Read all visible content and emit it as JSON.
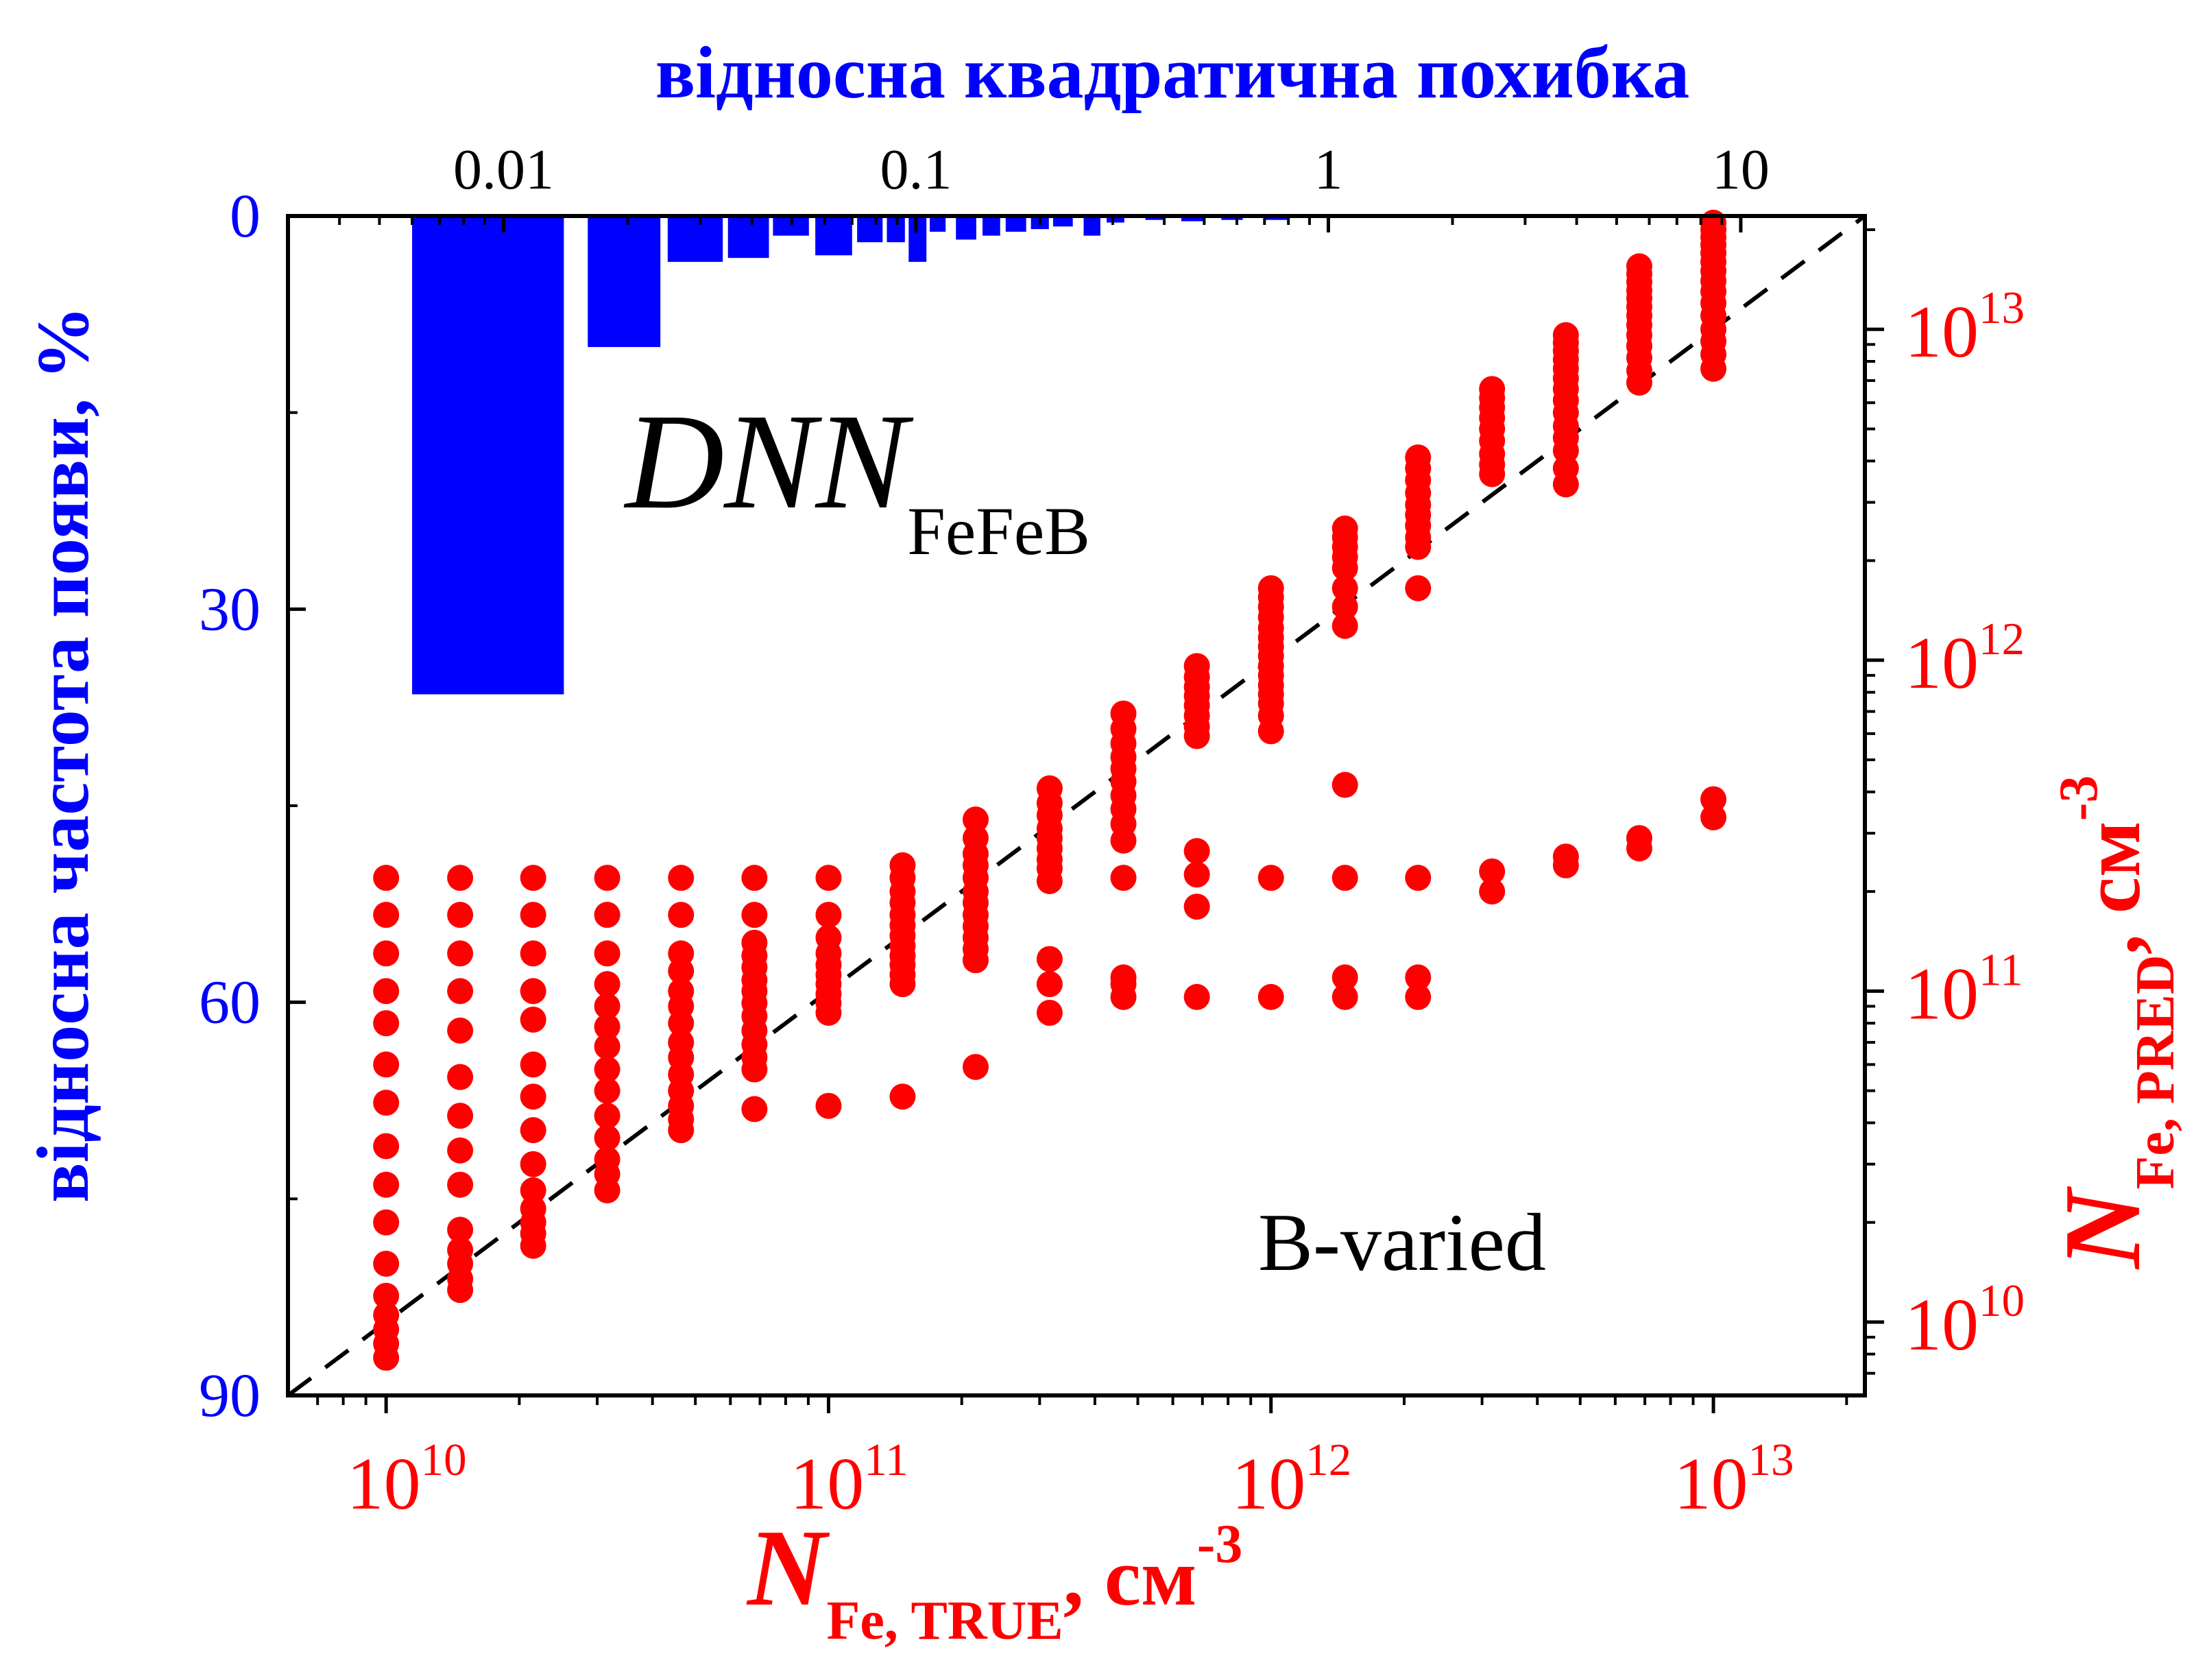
{
  "chart_data": {
    "type": "scatter",
    "colors": {
      "histogram": "#0000ff",
      "scatter": "#ff0000",
      "reference": "#000000",
      "axes": "#000000"
    },
    "top_axis": {
      "label": "відносна квадратична похибка",
      "scale": "log",
      "range": [
        0.003,
        20
      ],
      "ticks": [
        {
          "value": 0.01,
          "label": "0.01"
        },
        {
          "value": 0.1,
          "label": "0.1"
        },
        {
          "value": 1,
          "label": "1"
        },
        {
          "value": 10,
          "label": "10"
        }
      ]
    },
    "left_axis": {
      "label": "відносна частота появи, %",
      "scale": "linear",
      "inverted": true,
      "range": [
        0,
        90
      ],
      "ticks": [
        {
          "value": 0,
          "label": "0"
        },
        {
          "value": 30,
          "label": "30"
        },
        {
          "value": 60,
          "label": "60"
        },
        {
          "value": 90,
          "label": "90"
        }
      ]
    },
    "bottom_axis": {
      "label_main": "N",
      "label_sub": "Fe, TRUE",
      "label_unit": ", см",
      "label_exp": "-3",
      "scale": "log",
      "range": [
        6000000000.0,
        22000000000000.0
      ],
      "ticks": [
        {
          "value": 10000000000.0,
          "base": "10",
          "exp": "10"
        },
        {
          "value": 100000000000.0,
          "base": "10",
          "exp": "11"
        },
        {
          "value": 1000000000000.0,
          "base": "10",
          "exp": "12"
        },
        {
          "value": 10000000000000.0,
          "base": "10",
          "exp": "13"
        }
      ]
    },
    "right_axis": {
      "label_main": "N",
      "label_sub": "Fe, PRED",
      "label_unit": ", см",
      "label_exp": "-3",
      "scale": "log",
      "range": [
        6000000000.0,
        22000000000000.0
      ],
      "ticks": [
        {
          "value": 10000000000.0,
          "base": "10",
          "exp": "10"
        },
        {
          "value": 100000000000.0,
          "base": "10",
          "exp": "11"
        },
        {
          "value": 1000000000000.0,
          "base": "10",
          "exp": "12"
        },
        {
          "value": 10000000000000.0,
          "base": "10",
          "exp": "13"
        }
      ]
    },
    "annotations": {
      "model_main": "DNN",
      "model_sub": "FeFeB",
      "dataset": "B-varied"
    },
    "histogram": [
      {
        "x0": 0.006,
        "x1": 0.014,
        "value": 36.5
      },
      {
        "x0": 0.016,
        "x1": 0.024,
        "value": 10
      },
      {
        "x0": 0.025,
        "x1": 0.034,
        "value": 3.5
      },
      {
        "x0": 0.035,
        "x1": 0.044,
        "value": 3.2
      },
      {
        "x0": 0.045,
        "x1": 0.055,
        "value": 1.5
      },
      {
        "x0": 0.057,
        "x1": 0.07,
        "value": 3
      },
      {
        "x0": 0.072,
        "x1": 0.083,
        "value": 2
      },
      {
        "x0": 0.085,
        "x1": 0.094,
        "value": 2
      },
      {
        "x0": 0.096,
        "x1": 0.106,
        "value": 3.5
      },
      {
        "x0": 0.108,
        "x1": 0.118,
        "value": 1.2
      },
      {
        "x0": 0.125,
        "x1": 0.14,
        "value": 1.8
      },
      {
        "x0": 0.145,
        "x1": 0.16,
        "value": 1.5
      },
      {
        "x0": 0.165,
        "x1": 0.185,
        "value": 1.2
      },
      {
        "x0": 0.19,
        "x1": 0.21,
        "value": 1
      },
      {
        "x0": 0.215,
        "x1": 0.24,
        "value": 0.8
      },
      {
        "x0": 0.255,
        "x1": 0.28,
        "value": 1.5
      },
      {
        "x0": 0.29,
        "x1": 0.32,
        "value": 0.5
      },
      {
        "x0": 0.36,
        "x1": 0.4,
        "value": 0.3
      },
      {
        "x0": 0.44,
        "x1": 0.5,
        "value": 0.4
      },
      {
        "x0": 0.55,
        "x1": 0.62,
        "value": 0.3
      },
      {
        "x0": 0.7,
        "x1": 0.8,
        "value": 0.3
      }
    ],
    "reference_line": {
      "style": "dashed",
      "points": [
        [
          6000000000.0,
          6000000000.0
        ],
        [
          22000000000000.0,
          22000000000000.0
        ]
      ]
    },
    "series": [
      {
        "x": 10000000000.0,
        "y": [
          220000000000.0,
          170000000000.0,
          130000000000.0,
          100000000000.0,
          80000000000.0,
          60000000000.0,
          46000000000.0,
          34000000000.0,
          26000000000.0,
          20000000000.0,
          15000000000.0,
          12000000000.0,
          10500000000.0,
          9500000000.0,
          8600000000.0,
          7800000000.0
        ]
      },
      {
        "x": 14700000000.0,
        "y": [
          220000000000.0,
          170000000000.0,
          130000000000.0,
          100000000000.0,
          76000000000.0,
          55000000000.0,
          42000000000.0,
          33000000000.0,
          26000000000.0,
          19000000000.0,
          16500000000.0,
          15000000000.0,
          13500000000.0,
          12500000000.0
        ]
      },
      {
        "x": 21500000000.0,
        "y": [
          220000000000.0,
          170000000000.0,
          130000000000.0,
          100000000000.0,
          82000000000.0,
          60000000000.0,
          48000000000.0,
          38000000000.0,
          30000000000.0,
          25000000000.0,
          22000000000.0,
          20000000000.0,
          18500000000.0,
          17000000000.0
        ]
      },
      {
        "x": 31600000000.0,
        "y": [
          220000000000.0,
          170000000000.0,
          130000000000.0,
          105000000000.0,
          90000000000.0,
          78000000000.0,
          68000000000.0,
          58000000000.0,
          50000000000.0,
          42000000000.0,
          36000000000.0,
          31000000000.0,
          28000000000.0,
          25000000000.0
        ]
      },
      {
        "x": 46400000000.0,
        "y": [
          220000000000.0,
          170000000000.0,
          130000000000.0,
          115000000000.0,
          100000000000.0,
          90000000000.0,
          80000000000.0,
          70000000000.0,
          63000000000.0,
          56000000000.0,
          50000000000.0,
          45000000000.0,
          41000000000.0,
          38000000000.0
        ]
      },
      {
        "x": 68000000000.0,
        "y": [
          220000000000.0,
          170000000000.0,
          140000000000.0,
          128000000000.0,
          118000000000.0,
          108000000000.0,
          100000000000.0,
          92000000000.0,
          84000000000.0,
          76000000000.0,
          69000000000.0,
          63000000000.0,
          58000000000.0,
          44000000000.0
        ]
      },
      {
        "x": 100000000000.0,
        "y": [
          220000000000.0,
          170000000000.0,
          145000000000.0,
          130000000000.0,
          120000000000.0,
          112000000000.0,
          105000000000.0,
          98000000000.0,
          92000000000.0,
          86000000000.0,
          45000000000.0
        ]
      },
      {
        "x": 147000000000.0,
        "y": [
          240000000000.0,
          220000000000.0,
          200000000000.0,
          185000000000.0,
          170000000000.0,
          158000000000.0,
          147000000000.0,
          137000000000.0,
          128000000000.0,
          120000000000.0,
          112000000000.0,
          105000000000.0,
          48000000000.0
        ]
      },
      {
        "x": 215000000000.0,
        "y": [
          330000000000.0,
          290000000000.0,
          260000000000.0,
          240000000000.0,
          220000000000.0,
          200000000000.0,
          185000000000.0,
          170000000000.0,
          157000000000.0,
          145000000000.0,
          134000000000.0,
          124000000000.0,
          59000000000.0
        ]
      },
      {
        "x": 316000000000.0,
        "y": [
          410000000000.0,
          370000000000.0,
          340000000000.0,
          310000000000.0,
          290000000000.0,
          270000000000.0,
          250000000000.0,
          235000000000.0,
          215000000000.0,
          125000000000.0,
          105000000000.0,
          86000000000.0
        ]
      },
      {
        "x": 464000000000.0,
        "y": [
          690000000000.0,
          620000000000.0,
          560000000000.0,
          510000000000.0,
          470000000000.0,
          430000000000.0,
          390000000000.0,
          355000000000.0,
          320000000000.0,
          285000000000.0,
          220000000000.0,
          110000000000.0,
          105000000000.0,
          96000000000.0
        ]
      },
      {
        "x": 680000000000.0,
        "y": [
          960000000000.0,
          890000000000.0,
          830000000000.0,
          780000000000.0,
          730000000000.0,
          680000000000.0,
          630000000000.0,
          590000000000.0,
          265000000000.0,
          225000000000.0,
          180000000000.0,
          96000000000.0
        ]
      },
      {
        "x": 1000000000000.0,
        "y": [
          1650000000000.0,
          1550000000000.0,
          1450000000000.0,
          1350000000000.0,
          1250000000000.0,
          1170000000000.0,
          1100000000000.0,
          1030000000000.0,
          960000000000.0,
          900000000000.0,
          840000000000.0,
          790000000000.0,
          740000000000.0,
          680000000000.0,
          610000000000.0,
          220000000000.0,
          96000000000.0
        ]
      },
      {
        "x": 1470000000000.0,
        "y": [
          2500000000000.0,
          2350000000000.0,
          2200000000000.0,
          2050000000000.0,
          1900000000000.0,
          1650000000000.0,
          1450000000000.0,
          1270000000000.0,
          420000000000.0,
          220000000000.0,
          110000000000.0,
          96000000000.0
        ]
      },
      {
        "x": 2150000000000.0,
        "y": [
          4100000000000.0,
          3800000000000.0,
          3500000000000.0,
          3200000000000.0,
          2950000000000.0,
          2750000000000.0,
          2550000000000.0,
          2350000000000.0,
          2200000000000.0,
          1650000000000.0,
          220000000000.0,
          110000000000.0,
          96000000000.0
        ]
      },
      {
        "x": 3160000000000.0,
        "y": [
          6600000000000.0,
          6200000000000.0,
          5800000000000.0,
          5400000000000.0,
          5000000000000.0,
          4600000000000.0,
          4200000000000.0,
          3900000000000.0,
          3650000000000.0,
          230000000000.0,
          200000000000.0
        ]
      },
      {
        "x": 4640000000000.0,
        "y": [
          9600000000000.0,
          9100000000000.0,
          8600000000000.0,
          8100000000000.0,
          7600000000000.0,
          7100000000000.0,
          6600000000000.0,
          6100000000000.0,
          5600000000000.0,
          5100000000000.0,
          4700000000000.0,
          4300000000000.0,
          3800000000000.0,
          3400000000000.0,
          255000000000.0,
          240000000000.0
        ]
      },
      {
        "x": 6800000000000.0,
        "y": [
          15500000000000.0,
          14700000000000.0,
          13900000000000.0,
          13100000000000.0,
          12400000000000.0,
          11700000000000.0,
          11000000000000.0,
          10300000000000.0,
          9600000000000.0,
          8900000000000.0,
          8200000000000.0,
          7500000000000.0,
          6900000000000.0,
          290000000000.0,
          270000000000.0
        ]
      },
      {
        "x": 10000000000000.0,
        "y": [
          21000000000000.0,
          20000000000000.0,
          19000000000000.0,
          18000000000000.0,
          17000000000000.0,
          16000000000000.0,
          15000000000000.0,
          14000000000000.0,
          13000000000000.0,
          12000000000000.0,
          11000000000000.0,
          10000000000000.0,
          9200000000000.0,
          8400000000000.0,
          7600000000000.0,
          380000000000.0,
          335000000000.0
        ]
      }
    ]
  }
}
